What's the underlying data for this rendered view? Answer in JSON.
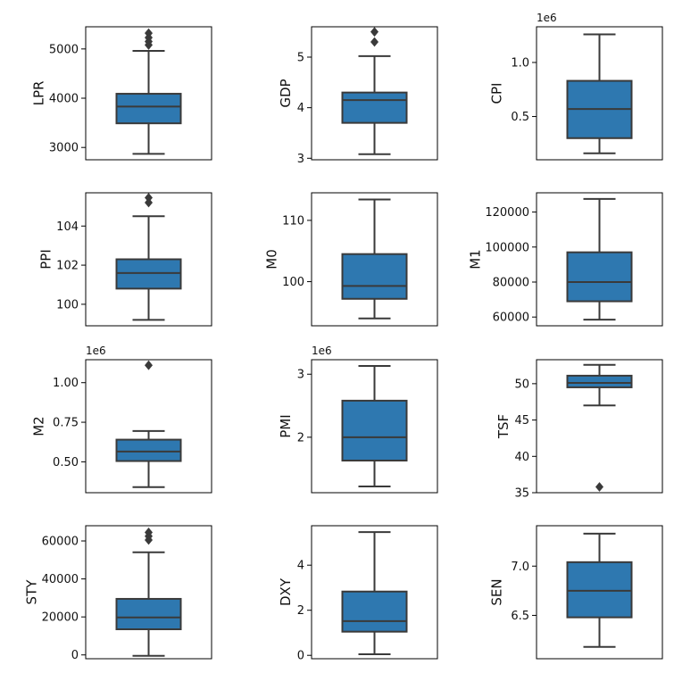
{
  "colors": {
    "box_fill": "#2e78b0",
    "line": "#3a3a3a",
    "frame": "#000000",
    "background": "#ffffff"
  },
  "chart_data": [
    {
      "type": "box",
      "ylabel": "LPR",
      "offset": "",
      "ylim": [
        2750,
        5450
      ],
      "ticks": [
        3000,
        4000,
        5000
      ],
      "tick_labels": [
        "3000",
        "4000",
        "5000"
      ],
      "whisker_low": 2870,
      "q1": 3490,
      "median": 3830,
      "q3": 4090,
      "whisker_high": 4960,
      "outliers": [
        5080,
        5150,
        5230,
        5320
      ]
    },
    {
      "type": "box",
      "ylabel": "GDP",
      "offset": "",
      "ylim": [
        2.97,
        5.6
      ],
      "ticks": [
        3,
        4,
        5
      ],
      "tick_labels": [
        "3",
        "4",
        "5"
      ],
      "whisker_low": 3.08,
      "q1": 3.7,
      "median": 4.15,
      "q3": 4.3,
      "whisker_high": 5.02,
      "outliers": [
        5.3,
        5.5
      ]
    },
    {
      "type": "box",
      "ylabel": "CPI",
      "offset": "1e6",
      "ylim": [
        0.1,
        1.33
      ],
      "ticks": [
        0.5,
        1.0
      ],
      "tick_labels": [
        "0.5",
        "1.0"
      ],
      "whisker_low": 0.16,
      "q1": 0.3,
      "median": 0.57,
      "q3": 0.83,
      "whisker_high": 1.26,
      "outliers": []
    },
    {
      "type": "box",
      "ylabel": "PPI",
      "offset": "",
      "ylim": [
        98.9,
        105.7
      ],
      "ticks": [
        100,
        102,
        104
      ],
      "tick_labels": [
        "100",
        "102",
        "104"
      ],
      "whisker_low": 99.2,
      "q1": 100.8,
      "median": 101.6,
      "q3": 102.3,
      "whisker_high": 104.5,
      "outliers": [
        105.2,
        105.45
      ]
    },
    {
      "type": "box",
      "ylabel": "M0",
      "offset": "",
      "ylim": [
        92.8,
        114.5
      ],
      "ticks": [
        100,
        110
      ],
      "tick_labels": [
        "100",
        "110"
      ],
      "whisker_low": 94.0,
      "q1": 97.2,
      "median": 99.3,
      "q3": 104.5,
      "whisker_high": 113.4,
      "outliers": []
    },
    {
      "type": "box",
      "ylabel": "M1",
      "offset": "",
      "ylim": [
        55000,
        131000
      ],
      "ticks": [
        60000,
        80000,
        100000,
        120000
      ],
      "tick_labels": [
        "60000",
        "80000",
        "100000",
        "120000"
      ],
      "whisker_low": 58500,
      "q1": 69000,
      "median": 80000,
      "q3": 97000,
      "whisker_high": 127500,
      "outliers": []
    },
    {
      "type": "box",
      "ylabel": "M2",
      "offset": "1e6",
      "ylim": [
        0.305,
        1.145
      ],
      "ticks": [
        0.5,
        0.75,
        1.0
      ],
      "tick_labels": [
        "0.50",
        "0.75",
        "1.00"
      ],
      "whisker_low": 0.34,
      "q1": 0.505,
      "median": 0.565,
      "q3": 0.64,
      "whisker_high": 0.695,
      "outliers": [
        1.11
      ]
    },
    {
      "type": "box",
      "ylabel": "PMI",
      "offset": "1e6",
      "ylim": [
        1.12,
        3.23
      ],
      "ticks": [
        2,
        3
      ],
      "tick_labels": [
        "2",
        "3"
      ],
      "whisker_low": 1.22,
      "q1": 1.63,
      "median": 2.0,
      "q3": 2.58,
      "whisker_high": 3.13,
      "outliers": []
    },
    {
      "type": "box",
      "ylabel": "TSF",
      "offset": "",
      "ylim": [
        35.0,
        53.3
      ],
      "ticks": [
        35,
        40,
        45,
        50
      ],
      "tick_labels": [
        "35",
        "40",
        "45",
        "50"
      ],
      "whisker_low": 47.0,
      "q1": 49.5,
      "median": 50.1,
      "q3": 51.1,
      "whisker_high": 52.6,
      "outliers": [
        35.8
      ]
    },
    {
      "type": "box",
      "ylabel": "STY",
      "offset": "",
      "ylim": [
        -2000,
        68000
      ],
      "ticks": [
        0,
        20000,
        40000,
        60000
      ],
      "tick_labels": [
        "0",
        "20000",
        "40000",
        "60000"
      ],
      "whisker_low": -500,
      "q1": 13500,
      "median": 19700,
      "q3": 29500,
      "whisker_high": 54000,
      "outliers": [
        60500,
        62500,
        64500
      ]
    },
    {
      "type": "box",
      "ylabel": "DXY",
      "offset": "",
      "ylim": [
        -0.15,
        5.75
      ],
      "ticks": [
        0,
        2,
        4
      ],
      "tick_labels": [
        "0",
        "2",
        "4"
      ],
      "whisker_low": 0.05,
      "q1": 1.05,
      "median": 1.52,
      "q3": 2.83,
      "whisker_high": 5.47,
      "outliers": []
    },
    {
      "type": "box",
      "ylabel": "SEN",
      "offset": "",
      "ylim": [
        6.06,
        7.41
      ],
      "ticks": [
        6.5,
        7.0
      ],
      "tick_labels": [
        "6.5",
        "7.0"
      ],
      "whisker_low": 6.18,
      "q1": 6.48,
      "median": 6.75,
      "q3": 7.04,
      "whisker_high": 7.33,
      "outliers": []
    }
  ]
}
